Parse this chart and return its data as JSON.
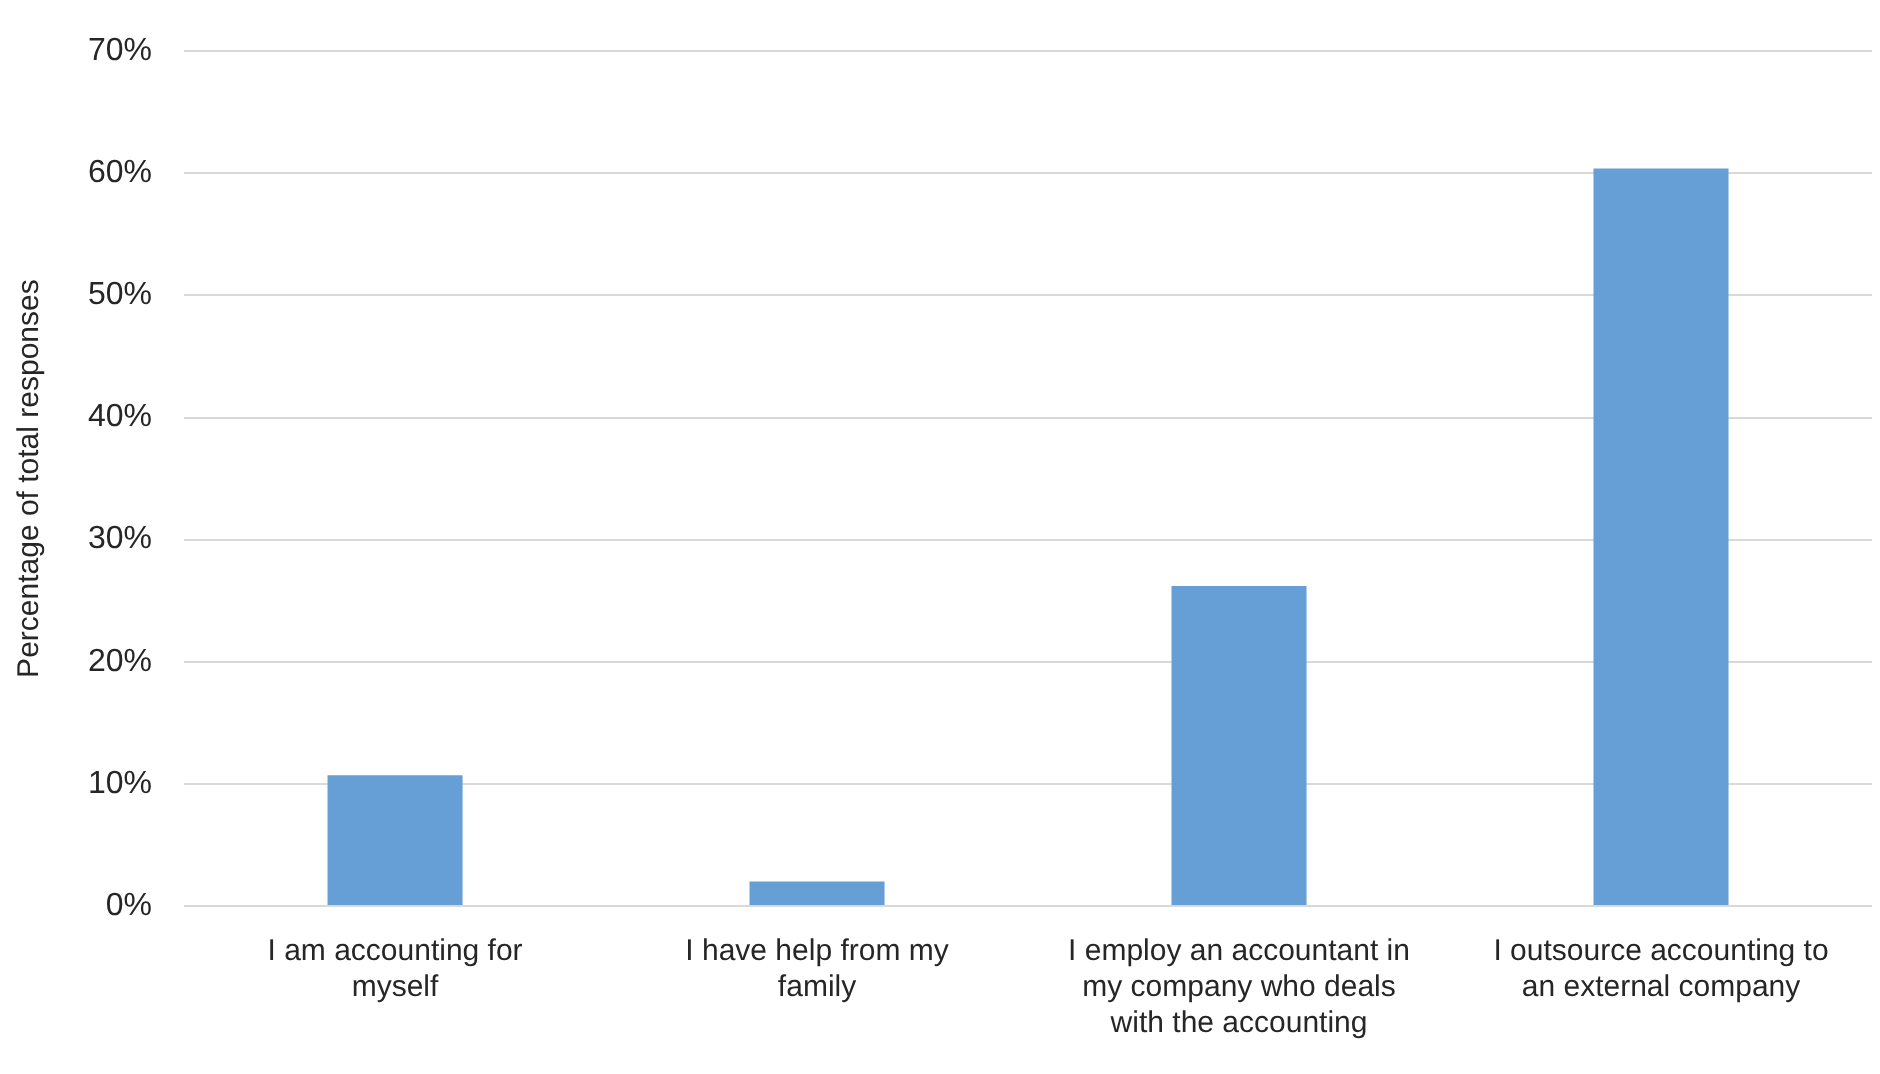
{
  "chart_data": {
    "type": "bar",
    "ylabel": "Percentage of total responses",
    "categories": [
      "I am accounting for myself",
      "I have help from my family",
      "I employ an accountant in my company who deals with the accounting",
      "I outsource accounting to an external company"
    ],
    "values": [
      10.7,
      2.0,
      26.2,
      60.4
    ],
    "color": "#669fd5",
    "ylim": [
      0,
      70
    ],
    "yticks": [
      {
        "value": 0,
        "label": "0%"
      },
      {
        "value": 10,
        "label": "10%"
      },
      {
        "value": 20,
        "label": "20%"
      },
      {
        "value": 30,
        "label": "30%"
      },
      {
        "value": 40,
        "label": "40%"
      },
      {
        "value": 50,
        "label": "50%"
      },
      {
        "value": 60,
        "label": "60%"
      },
      {
        "value": 70,
        "label": "70%"
      }
    ],
    "grid": "y",
    "legend": false
  }
}
